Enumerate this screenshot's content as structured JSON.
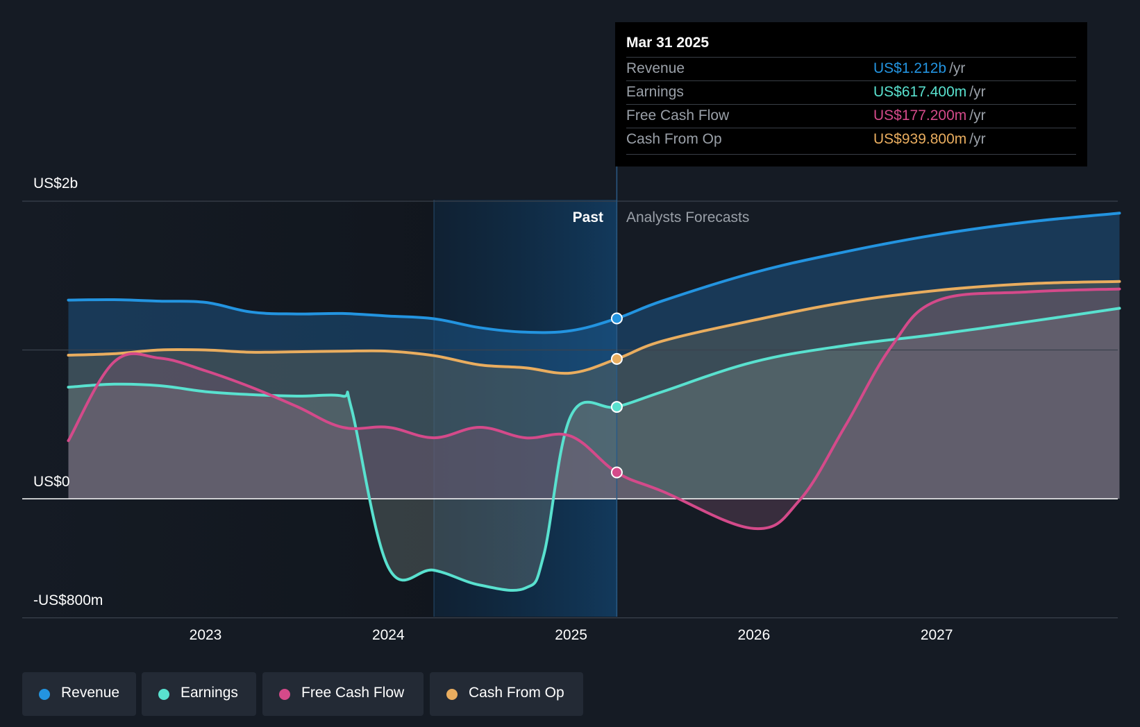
{
  "chart_data": {
    "type": "area",
    "y_labels": {
      "top": "US$2b",
      "zero": "US$0",
      "bottom": "-US$800m"
    },
    "ylim": [
      -800,
      2000
    ],
    "x_ticks": [
      {
        "label": "2023",
        "value": 2023.0
      },
      {
        "label": "2024",
        "value": 2024.0
      },
      {
        "label": "2025",
        "value": 2025.0
      },
      {
        "label": "2026",
        "value": 2026.0
      },
      {
        "label": "2027",
        "value": 2027.0
      }
    ],
    "xlim": [
      2021.0,
      2028.0
    ],
    "past_label": "Past",
    "forecast_label": "Analysts Forecasts",
    "divider_x": 2025.25,
    "highlight_start_x": 2024.25,
    "series": [
      {
        "name": "Revenue",
        "color": "#2394e0",
        "points": [
          [
            2022.25,
            1335
          ],
          [
            2022.5,
            1338
          ],
          [
            2022.75,
            1328
          ],
          [
            2023.0,
            1320
          ],
          [
            2023.25,
            1255
          ],
          [
            2023.5,
            1242
          ],
          [
            2023.75,
            1245
          ],
          [
            2024.0,
            1228
          ],
          [
            2024.25,
            1210
          ],
          [
            2024.5,
            1150
          ],
          [
            2024.75,
            1120
          ],
          [
            2025.0,
            1130
          ],
          [
            2025.25,
            1212
          ],
          [
            2025.5,
            1330
          ],
          [
            2026.0,
            1520
          ],
          [
            2026.5,
            1660
          ],
          [
            2027.0,
            1775
          ],
          [
            2027.5,
            1860
          ],
          [
            2028.0,
            1920
          ]
        ]
      },
      {
        "name": "Cash From Op",
        "color": "#e9ad5f",
        "points": [
          [
            2022.25,
            965
          ],
          [
            2022.5,
            975
          ],
          [
            2022.75,
            1000
          ],
          [
            2023.0,
            1000
          ],
          [
            2023.25,
            985
          ],
          [
            2023.5,
            988
          ],
          [
            2023.75,
            992
          ],
          [
            2024.0,
            992
          ],
          [
            2024.25,
            962
          ],
          [
            2024.5,
            900
          ],
          [
            2024.75,
            880
          ],
          [
            2025.0,
            845
          ],
          [
            2025.25,
            939.8
          ],
          [
            2025.5,
            1060
          ],
          [
            2026.0,
            1200
          ],
          [
            2026.5,
            1320
          ],
          [
            2027.0,
            1400
          ],
          [
            2027.5,
            1445
          ],
          [
            2028.0,
            1460
          ]
        ]
      },
      {
        "name": "Earnings",
        "color": "#59e1cf",
        "points": [
          [
            2022.25,
            750
          ],
          [
            2022.5,
            770
          ],
          [
            2022.75,
            760
          ],
          [
            2023.0,
            720
          ],
          [
            2023.25,
            700
          ],
          [
            2023.5,
            690
          ],
          [
            2023.75,
            690
          ],
          [
            2023.8,
            600
          ],
          [
            2024.0,
            -460
          ],
          [
            2024.25,
            -480
          ],
          [
            2024.5,
            -580
          ],
          [
            2024.75,
            -600
          ],
          [
            2024.85,
            -380
          ],
          [
            2025.0,
            560
          ],
          [
            2025.25,
            617.4
          ],
          [
            2025.5,
            720
          ],
          [
            2026.0,
            920
          ],
          [
            2026.5,
            1030
          ],
          [
            2027.0,
            1105
          ],
          [
            2027.5,
            1190
          ],
          [
            2028.0,
            1280
          ]
        ]
      },
      {
        "name": "Free Cash Flow",
        "color": "#d44a8a",
        "points": [
          [
            2022.25,
            390
          ],
          [
            2022.5,
            920
          ],
          [
            2022.75,
            945
          ],
          [
            2023.0,
            860
          ],
          [
            2023.25,
            750
          ],
          [
            2023.5,
            620
          ],
          [
            2023.75,
            480
          ],
          [
            2024.0,
            480
          ],
          [
            2024.25,
            410
          ],
          [
            2024.5,
            480
          ],
          [
            2024.75,
            410
          ],
          [
            2025.0,
            420
          ],
          [
            2025.25,
            177.2
          ],
          [
            2025.5,
            50
          ],
          [
            2026.0,
            -200
          ],
          [
            2026.25,
            -10
          ],
          [
            2026.5,
            490
          ],
          [
            2026.75,
            1020
          ],
          [
            2027.0,
            1330
          ],
          [
            2027.5,
            1390
          ],
          [
            2028.0,
            1410
          ]
        ]
      }
    ],
    "tooltip": {
      "date": "Mar 31 2025",
      "rows": [
        {
          "label": "Revenue",
          "value": "US$1.212b",
          "unit": "/yr",
          "color": "#2394e0"
        },
        {
          "label": "Earnings",
          "value": "US$617.400m",
          "unit": "/yr",
          "color": "#59e1cf"
        },
        {
          "label": "Free Cash Flow",
          "value": "US$177.200m",
          "unit": "/yr",
          "color": "#d44a8a"
        },
        {
          "label": "Cash From Op",
          "value": "US$939.800m",
          "unit": "/yr",
          "color": "#e9ad5f"
        }
      ]
    },
    "legend": [
      {
        "label": "Revenue",
        "color": "#2394e0"
      },
      {
        "label": "Earnings",
        "color": "#59e1cf"
      },
      {
        "label": "Free Cash Flow",
        "color": "#d44a8a"
      },
      {
        "label": "Cash From Op",
        "color": "#e9ad5f"
      }
    ]
  }
}
